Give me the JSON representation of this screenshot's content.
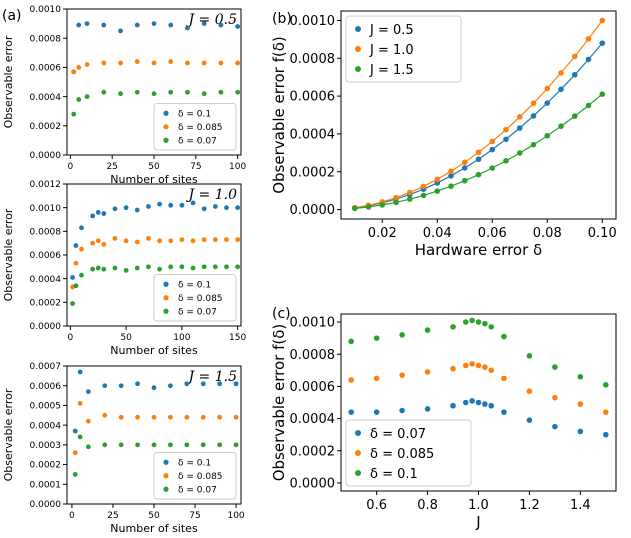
{
  "colors": {
    "blue": "#1f77b4",
    "orange": "#ff7f0e",
    "green": "#2ca02c"
  },
  "chart_data": [
    {
      "panel_label": "(a)",
      "type": "scatter",
      "annotation": "J = 0.5",
      "xlabel": "Number of sites",
      "ylabel": "Observable error",
      "xlim": [
        -2,
        102
      ],
      "ylim": [
        0,
        0.001
      ],
      "xticks": [
        0,
        25,
        50,
        75,
        100
      ],
      "xtick_labels": [
        "0",
        "25",
        "50",
        "75",
        "100"
      ],
      "yticks": [
        0,
        0.0002,
        0.0004,
        0.0006,
        0.0008,
        0.001
      ],
      "ytick_labels": [
        "0.0000",
        "0.0002",
        "0.0004",
        "0.0006",
        "0.0008",
        "0.0010"
      ],
      "legend_position": "lower-right",
      "series": [
        {
          "name": "δ = 0.1",
          "color": "#1f77b4",
          "x": [
            2,
            5,
            10,
            20,
            30,
            40,
            50,
            60,
            70,
            80,
            90,
            100
          ],
          "y": [
            0.00057,
            0.00089,
            0.0009,
            0.00089,
            0.00085,
            0.00089,
            0.0009,
            0.00089,
            0.00087,
            0.0009,
            0.00089,
            0.00088
          ]
        },
        {
          "name": "δ = 0.085",
          "color": "#ff7f0e",
          "x": [
            2,
            5,
            10,
            20,
            30,
            40,
            50,
            60,
            70,
            80,
            90,
            100
          ],
          "y": [
            0.00057,
            0.0006,
            0.00062,
            0.00063,
            0.00063,
            0.00064,
            0.00063,
            0.00064,
            0.00063,
            0.00063,
            0.00063,
            0.00063
          ]
        },
        {
          "name": "δ = 0.07",
          "color": "#2ca02c",
          "x": [
            2,
            5,
            10,
            20,
            30,
            40,
            50,
            60,
            70,
            80,
            90,
            100
          ],
          "y": [
            0.00028,
            0.00038,
            0.0004,
            0.00043,
            0.00042,
            0.00043,
            0.00042,
            0.00043,
            0.00043,
            0.00042,
            0.00043,
            0.00043
          ]
        }
      ]
    },
    {
      "panel_label": "",
      "type": "scatter",
      "annotation": "J = 1.0",
      "xlabel": "Number of sites",
      "ylabel": "Observable error",
      "xlim": [
        -3,
        153
      ],
      "ylim": [
        0,
        0.0012
      ],
      "xticks": [
        0,
        50,
        100,
        150
      ],
      "xtick_labels": [
        "0",
        "50",
        "100",
        "150"
      ],
      "yticks": [
        0,
        0.0002,
        0.0004,
        0.0006,
        0.0008,
        0.001,
        0.0012
      ],
      "ytick_labels": [
        "0.0000",
        "0.0002",
        "0.0004",
        "0.0006",
        "0.0008",
        "0.0010",
        "0.0012"
      ],
      "legend_position": "lower-right",
      "series": [
        {
          "name": "δ = 0.1",
          "color": "#1f77b4",
          "x": [
            2,
            5,
            10,
            20,
            25,
            30,
            40,
            50,
            60,
            70,
            80,
            90,
            100,
            110,
            120,
            130,
            140,
            150
          ],
          "y": [
            0.00041,
            0.00068,
            0.00083,
            0.00093,
            0.00096,
            0.00095,
            0.00099,
            0.001,
            0.00098,
            0.00101,
            0.00103,
            0.00102,
            0.00102,
            0.00104,
            0.00099,
            0.00101,
            0.001,
            0.001
          ]
        },
        {
          "name": "δ = 0.085",
          "color": "#ff7f0e",
          "x": [
            2,
            5,
            10,
            20,
            25,
            30,
            40,
            50,
            60,
            70,
            80,
            90,
            100,
            110,
            120,
            130,
            140,
            150
          ],
          "y": [
            0.00033,
            0.00053,
            0.00065,
            0.0007,
            0.00072,
            0.00069,
            0.00074,
            0.00072,
            0.00071,
            0.00074,
            0.00072,
            0.00072,
            0.00073,
            0.00072,
            0.00073,
            0.00073,
            0.00073,
            0.00073
          ]
        },
        {
          "name": "δ = 0.07",
          "color": "#2ca02c",
          "x": [
            2,
            5,
            10,
            20,
            25,
            30,
            40,
            50,
            60,
            70,
            80,
            90,
            100,
            110,
            120,
            130,
            140,
            150
          ],
          "y": [
            0.00019,
            0.00034,
            0.00043,
            0.00048,
            0.00049,
            0.00048,
            0.00049,
            0.00047,
            0.00049,
            0.0005,
            0.00048,
            0.0005,
            0.0005,
            0.00049,
            0.0005,
            0.0005,
            0.0005,
            0.0005
          ]
        }
      ]
    },
    {
      "panel_label": "",
      "type": "scatter",
      "annotation": "J = 1.5",
      "xlabel": "Number of sites",
      "ylabel": "Observable error",
      "xlim": [
        -3,
        103
      ],
      "ylim": [
        0,
        0.0007
      ],
      "xticks": [
        0,
        25,
        50,
        75,
        100
      ],
      "xtick_labels": [
        "0",
        "25",
        "50",
        "75",
        "100"
      ],
      "yticks": [
        0,
        0.0001,
        0.0002,
        0.0003,
        0.0004,
        0.0005,
        0.0006,
        0.0007
      ],
      "ytick_labels": [
        "0.0000",
        "0.0001",
        "0.0002",
        "0.0003",
        "0.0004",
        "0.0005",
        "0.0006",
        "0.0007"
      ],
      "legend_position": "lower-right",
      "series": [
        {
          "name": "δ = 0.1",
          "color": "#1f77b4",
          "x": [
            2,
            5,
            10,
            20,
            30,
            40,
            50,
            60,
            70,
            80,
            90,
            100
          ],
          "y": [
            0.00037,
            0.00067,
            0.00057,
            0.0006,
            0.0006,
            0.00061,
            0.00059,
            0.0006,
            0.00061,
            0.00061,
            0.00061,
            0.00061
          ]
        },
        {
          "name": "δ = 0.085",
          "color": "#ff7f0e",
          "x": [
            2,
            5,
            10,
            20,
            30,
            40,
            50,
            60,
            70,
            80,
            90,
            100
          ],
          "y": [
            0.00026,
            0.00051,
            0.00042,
            0.00045,
            0.00044,
            0.00044,
            0.00044,
            0.00044,
            0.00044,
            0.00044,
            0.00044,
            0.00044
          ]
        },
        {
          "name": "δ = 0.07",
          "color": "#2ca02c",
          "x": [
            2,
            5,
            10,
            20,
            30,
            40,
            50,
            60,
            70,
            80,
            90,
            100
          ],
          "y": [
            0.00015,
            0.00034,
            0.00029,
            0.0003,
            0.0003,
            0.0003,
            0.0003,
            0.0003,
            0.0003,
            0.0003,
            0.0003,
            0.0003
          ]
        }
      ]
    },
    {
      "panel_label": "(b)",
      "type": "line",
      "xlabel": "Hardware error δ",
      "ylabel": "Observable error f(δ)",
      "xlim": [
        0.005,
        0.105
      ],
      "ylim": [
        -5e-05,
        0.00105
      ],
      "xticks": [
        0.02,
        0.04,
        0.06,
        0.08,
        0.1
      ],
      "xtick_labels": [
        "0.02",
        "0.04",
        "0.06",
        "0.08",
        "0.10"
      ],
      "yticks": [
        0,
        0.0002,
        0.0004,
        0.0006,
        0.0008,
        0.001
      ],
      "ytick_labels": [
        "0.0000",
        "0.0002",
        "0.0004",
        "0.0006",
        "0.0008",
        "0.0010"
      ],
      "legend_position": "top-left",
      "series": [
        {
          "name": "J = 0.5",
          "color": "#1f77b4",
          "x": [
            0.01,
            0.015,
            0.02,
            0.025,
            0.03,
            0.035,
            0.04,
            0.045,
            0.05,
            0.055,
            0.06,
            0.065,
            0.07,
            0.075,
            0.08,
            0.085,
            0.09,
            0.095,
            0.1
          ],
          "y": [
            8.8e-06,
            1.98e-05,
            3.52e-05,
            5.5e-05,
            7.92e-05,
            0.0001078,
            0.0001408,
            0.0001782,
            0.00022,
            0.0002662,
            0.0003168,
            0.0003718,
            0.0004312,
            0.000495,
            0.0005632,
            0.0006358,
            0.0007128,
            0.0007942,
            0.00088
          ]
        },
        {
          "name": "J = 1.0",
          "color": "#ff7f0e",
          "x": [
            0.01,
            0.015,
            0.02,
            0.025,
            0.03,
            0.035,
            0.04,
            0.045,
            0.05,
            0.055,
            0.06,
            0.065,
            0.07,
            0.075,
            0.08,
            0.085,
            0.09,
            0.095,
            0.1
          ],
          "y": [
            1e-05,
            2.25e-05,
            4e-05,
            6.25e-05,
            9e-05,
            0.0001225,
            0.00016,
            0.0002025,
            0.00025,
            0.0003025,
            0.00036,
            0.0004225,
            0.00049,
            0.0005625,
            0.00064,
            0.0007225,
            0.00081,
            0.0009025,
            0.001
          ]
        },
        {
          "name": "J = 1.5",
          "color": "#2ca02c",
          "x": [
            0.01,
            0.015,
            0.02,
            0.025,
            0.03,
            0.035,
            0.04,
            0.045,
            0.05,
            0.055,
            0.06,
            0.065,
            0.07,
            0.075,
            0.08,
            0.085,
            0.09,
            0.095,
            0.1
          ],
          "y": [
            6.1e-06,
            1.37e-05,
            2.44e-05,
            3.81e-05,
            5.49e-05,
            7.47e-05,
            9.76e-05,
            0.0001235,
            0.0001525,
            0.0001845,
            0.0002196,
            0.0002577,
            0.0002989,
            0.0003431,
            0.0003904,
            0.0004407,
            0.0004941,
            0.0005505,
            0.00061
          ]
        }
      ]
    },
    {
      "panel_label": "(c)",
      "type": "scatter",
      "xlabel": "J",
      "ylabel": "Observable error f(δ)",
      "xlim": [
        0.46,
        1.54
      ],
      "ylim": [
        -5e-05,
        0.00105
      ],
      "xticks": [
        0.6,
        0.8,
        1.0,
        1.2,
        1.4
      ],
      "xtick_labels": [
        "0.6",
        "0.8",
        "1.0",
        "1.2",
        "1.4"
      ],
      "yticks": [
        0,
        0.0002,
        0.0004,
        0.0006,
        0.0008,
        0.001
      ],
      "ytick_labels": [
        "0.0000",
        "0.0002",
        "0.0004",
        "0.0006",
        "0.0008",
        "0.0010"
      ],
      "legend_position": "lower-left",
      "series": [
        {
          "name": "δ = 0.07",
          "color": "#1f77b4",
          "x": [
            0.5,
            0.6,
            0.7,
            0.8,
            0.9,
            0.95,
            0.975,
            1.0,
            1.025,
            1.05,
            1.1,
            1.2,
            1.3,
            1.4,
            1.5
          ],
          "y": [
            0.00044,
            0.00044,
            0.00045,
            0.00046,
            0.00048,
            0.0005,
            0.00051,
            0.0005,
            0.00049,
            0.00048,
            0.00044,
            0.00039,
            0.00035,
            0.00032,
            0.0003
          ]
        },
        {
          "name": "δ = 0.085",
          "color": "#ff7f0e",
          "x": [
            0.5,
            0.6,
            0.7,
            0.8,
            0.9,
            0.95,
            0.975,
            1.0,
            1.025,
            1.05,
            1.1,
            1.2,
            1.3,
            1.4,
            1.5
          ],
          "y": [
            0.00064,
            0.00065,
            0.00067,
            0.00069,
            0.00071,
            0.00073,
            0.00074,
            0.00073,
            0.00072,
            0.0007,
            0.00065,
            0.00057,
            0.00053,
            0.00049,
            0.00044
          ]
        },
        {
          "name": "δ = 0.1",
          "color": "#2ca02c",
          "x": [
            0.5,
            0.6,
            0.7,
            0.8,
            0.9,
            0.95,
            0.975,
            1.0,
            1.025,
            1.05,
            1.1,
            1.2,
            1.3,
            1.4,
            1.5
          ],
          "y": [
            0.00088,
            0.0009,
            0.00092,
            0.00095,
            0.00097,
            0.001,
            0.00101,
            0.001,
            0.00099,
            0.00097,
            0.00091,
            0.00079,
            0.00072,
            0.00066,
            0.00061
          ]
        }
      ]
    }
  ]
}
